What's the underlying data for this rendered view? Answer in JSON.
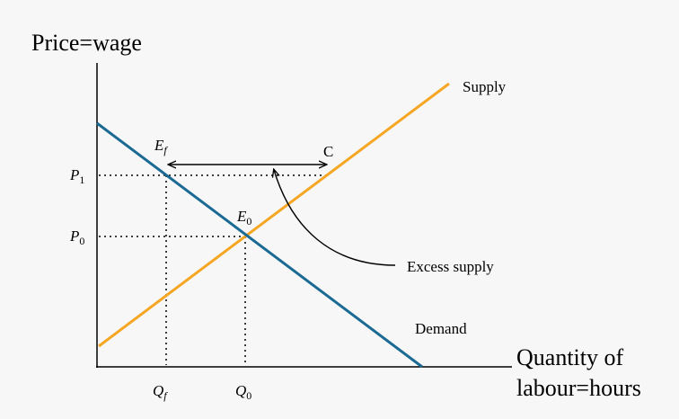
{
  "axes": {
    "y_label": "Price=wage",
    "x_label": [
      "Quantity of",
      "labour=hours"
    ]
  },
  "curves": {
    "supply": "Supply",
    "demand": "Demand"
  },
  "annotations": {
    "excess": "Excess supply",
    "c": "C"
  },
  "points": {
    "ef": {
      "main": "E",
      "sub": "f"
    },
    "e0": {
      "main": "E",
      "sub": "0"
    },
    "p1": {
      "main": "P",
      "sub": "1"
    },
    "p0": {
      "main": "P",
      "sub": "0"
    },
    "qf": {
      "main": "Q",
      "sub": "f"
    },
    "q0": {
      "main": "Q",
      "sub": "0"
    }
  }
}
